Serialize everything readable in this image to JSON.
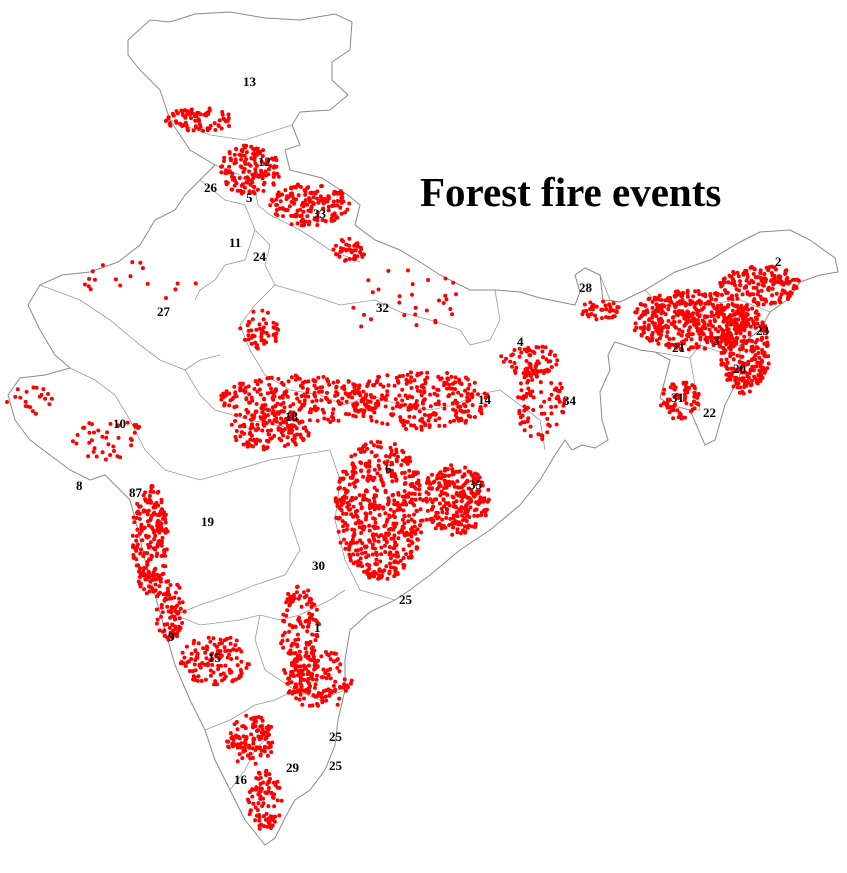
{
  "title": "Forest fire events",
  "colors": {
    "fire": "#ff0000",
    "boundary": "#8a8a8a",
    "land": "#ffffff",
    "label": "#000000"
  },
  "state_labels": [
    "13",
    "12",
    "26",
    "5",
    "33",
    "11",
    "24",
    "27",
    "32",
    "28",
    "2",
    "23",
    "21",
    "3",
    "20",
    "31",
    "22",
    "4",
    "14",
    "34",
    "10",
    "18",
    "6",
    "35",
    "8",
    "87",
    "19",
    "30",
    "25",
    "1",
    "9",
    "15",
    "25",
    "16",
    "29",
    "25"
  ]
}
